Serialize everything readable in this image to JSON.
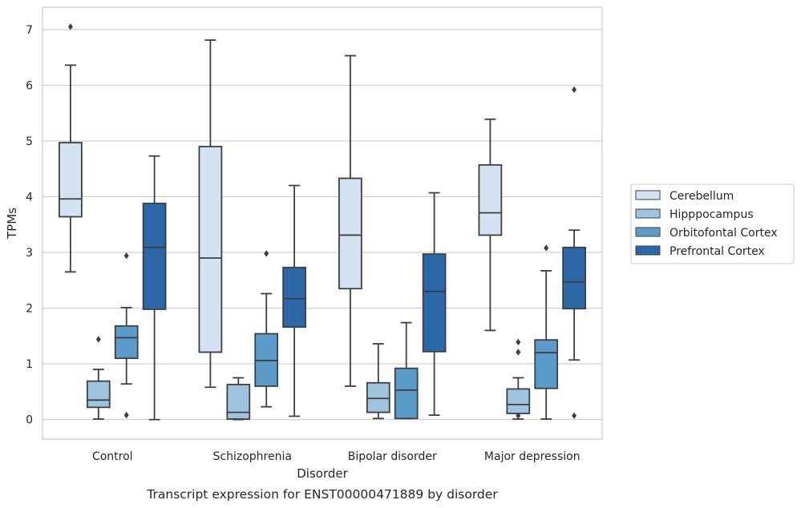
{
  "chart_data": {
    "type": "box",
    "caption": "Transcript expression for ENST00000471889 by disorder",
    "xlabel": "Disorder",
    "ylabel": "TPMs",
    "ylim": [
      -0.35,
      7.4
    ],
    "yticks": [
      0,
      1,
      2,
      3,
      4,
      5,
      6,
      7
    ],
    "grid": "horizontal",
    "legend_position": "right",
    "categories": [
      "Control",
      "Schizophrenia",
      "Bipolar disorder",
      "Major depression"
    ],
    "series": [
      {
        "name": "Cerebellum",
        "color": "#d4e3f2",
        "boxes": [
          {
            "whislo": 2.65,
            "q1": 3.64,
            "med": 3.96,
            "q3": 4.97,
            "whishi": 6.36,
            "fliers": [
              7.05
            ]
          },
          {
            "whislo": 0.58,
            "q1": 1.21,
            "med": 2.9,
            "q3": 4.9,
            "whishi": 6.81,
            "fliers": []
          },
          {
            "whislo": 0.6,
            "q1": 2.35,
            "med": 3.31,
            "q3": 4.33,
            "whishi": 6.53,
            "fliers": []
          },
          {
            "whislo": 1.6,
            "q1": 3.31,
            "med": 3.71,
            "q3": 4.57,
            "whishi": 5.39,
            "fliers": []
          }
        ]
      },
      {
        "name": "Hipppocampus",
        "color": "#9dc3de",
        "boxes": [
          {
            "whislo": 0.01,
            "q1": 0.22,
            "med": 0.35,
            "q3": 0.69,
            "whishi": 0.9,
            "fliers": [
              1.44
            ]
          },
          {
            "whislo": 0.0,
            "q1": 0.01,
            "med": 0.13,
            "q3": 0.63,
            "whishi": 0.75,
            "fliers": []
          },
          {
            "whislo": 0.02,
            "q1": 0.13,
            "med": 0.38,
            "q3": 0.66,
            "whishi": 1.36,
            "fliers": []
          },
          {
            "whislo": 0.01,
            "q1": 0.11,
            "med": 0.27,
            "q3": 0.55,
            "whishi": 0.75,
            "fliers": [
              1.39,
              1.21,
              0.07
            ]
          }
        ]
      },
      {
        "name": "Orbitofontal Cortex",
        "color": "#5b9bc9",
        "boxes": [
          {
            "whislo": 0.64,
            "q1": 1.1,
            "med": 1.47,
            "q3": 1.68,
            "whishi": 2.01,
            "fliers": [
              2.94,
              0.08
            ]
          },
          {
            "whislo": 0.23,
            "q1": 0.6,
            "med": 1.06,
            "q3": 1.54,
            "whishi": 2.26,
            "fliers": [
              2.98
            ]
          },
          {
            "whislo": 0.02,
            "q1": 0.02,
            "med": 0.53,
            "q3": 0.92,
            "whishi": 1.74,
            "fliers": []
          },
          {
            "whislo": 0.01,
            "q1": 0.56,
            "med": 1.2,
            "q3": 1.43,
            "whishi": 2.67,
            "fliers": [
              3.08
            ]
          }
        ]
      },
      {
        "name": "Prefrontal Cortex",
        "color": "#2a68a8",
        "boxes": [
          {
            "whislo": 0.0,
            "q1": 1.98,
            "med": 3.09,
            "q3": 3.88,
            "whishi": 4.73,
            "fliers": []
          },
          {
            "whislo": 0.06,
            "q1": 1.66,
            "med": 2.17,
            "q3": 2.73,
            "whishi": 4.2,
            "fliers": []
          },
          {
            "whislo": 0.08,
            "q1": 1.22,
            "med": 2.3,
            "q3": 2.97,
            "whishi": 4.07,
            "fliers": []
          },
          {
            "whislo": 1.07,
            "q1": 1.99,
            "med": 2.47,
            "q3": 3.09,
            "whishi": 3.4,
            "fliers": [
              5.92,
              0.07
            ]
          }
        ]
      }
    ]
  }
}
